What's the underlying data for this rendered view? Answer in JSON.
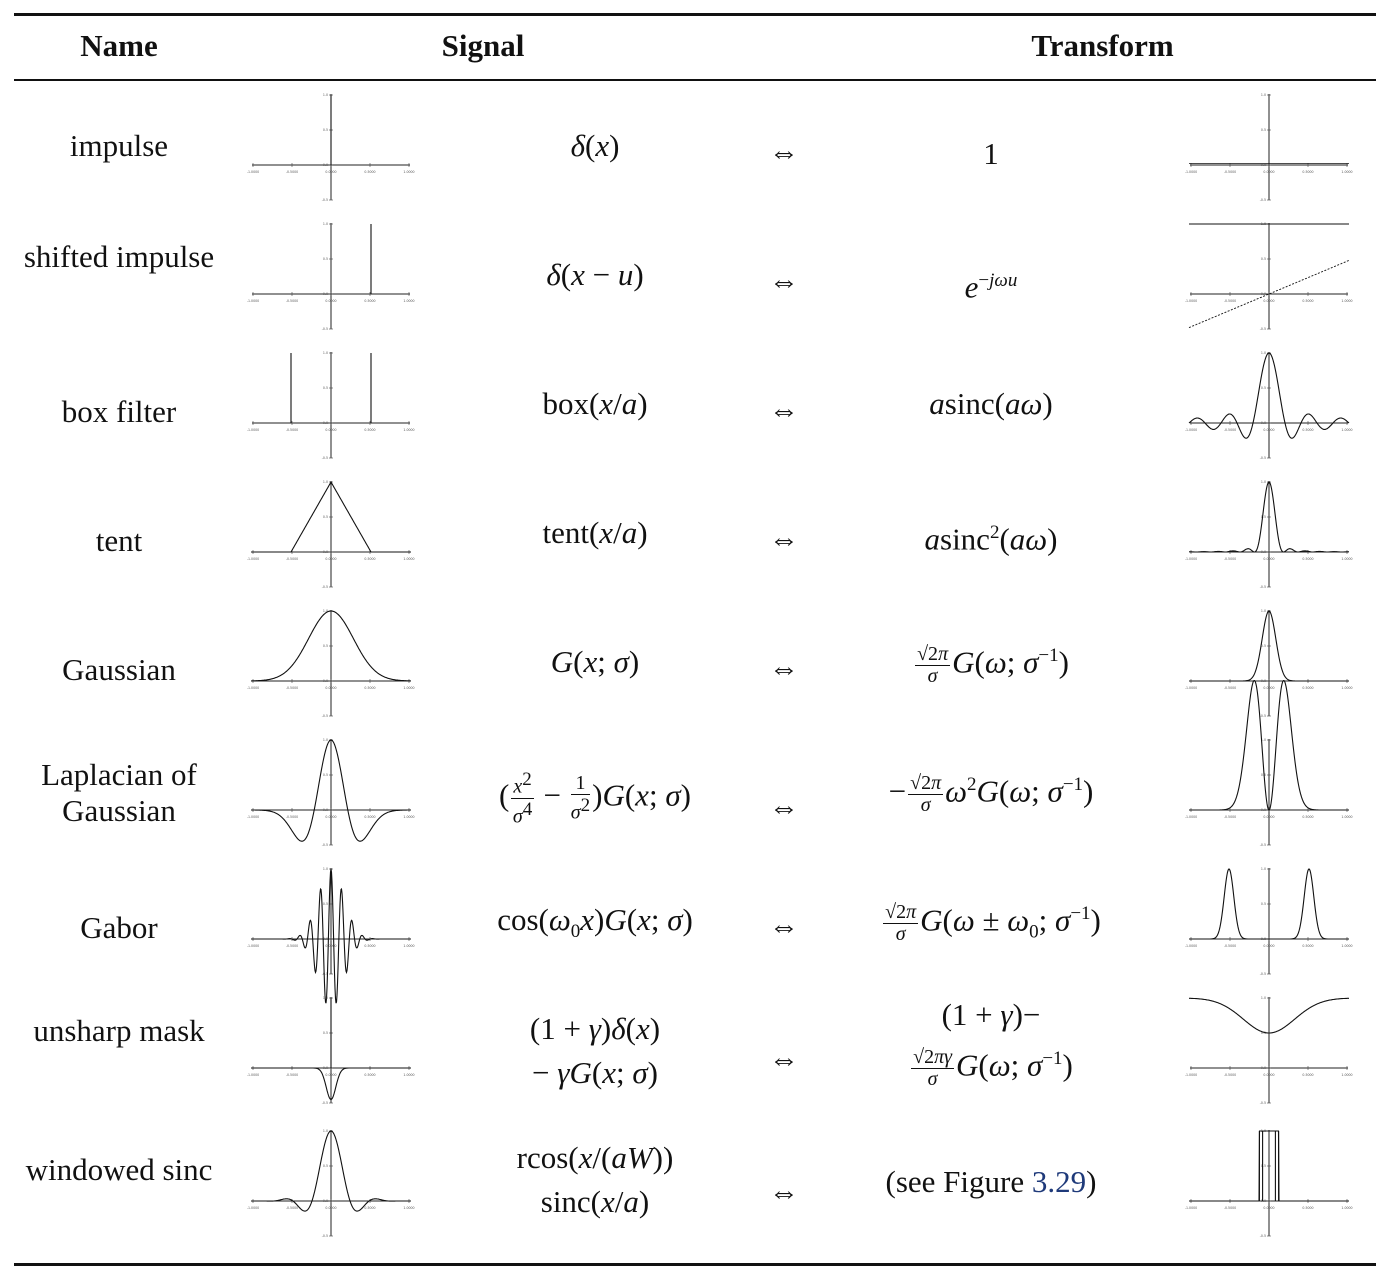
{
  "header": {
    "name": "Name",
    "signal": "Signal",
    "transform": "Transform"
  },
  "rows": [
    {
      "name": "impulse",
      "signal": "δ(x)",
      "transform": "1"
    },
    {
      "name": "shifted impulse",
      "signal": "δ(x − u)",
      "transform": "e^{−jωu}"
    },
    {
      "name": "box filter",
      "signal": "box(x/a)",
      "transform": "asinc(aω)"
    },
    {
      "name": "tent",
      "signal": "tent(x/a)",
      "transform": "asinc²(aω)"
    },
    {
      "name": "Gaussian",
      "signal": "G(x; σ)",
      "transform": "(√2π/σ) G(ω; σ⁻¹)"
    },
    {
      "name": "Laplacian of Gaussian",
      "signal": "(x²/σ⁴ − 1/σ²) G(x; σ)",
      "transform": "−(√2π/σ) ω² G(ω; σ⁻¹)"
    },
    {
      "name": "Gabor",
      "signal": "cos(ω₀x) G(x; σ)",
      "transform": "(√2π/σ) G(ω ± ω₀; σ⁻¹)"
    },
    {
      "name": "unsharp mask",
      "signal": "(1 + γ)δ(x) − γG(x; σ)",
      "transform": "(1 + γ)− (√2πγ/σ) G(ω; σ⁻¹)"
    },
    {
      "name": "windowed sinc",
      "signal": "rcos(x/(aW)) sinc(x/a)",
      "transform": "(see Figure 3.29)"
    }
  ],
  "arrow": "⇔",
  "figure_ref": "3.29",
  "plot_axis": {
    "x_ticks": [
      "-1.0000",
      "-0.5000",
      "0.0000",
      "0.5000",
      "1.0000"
    ],
    "y_ticks": [
      "1.0",
      "0.5",
      "0.0",
      "-0.5"
    ]
  }
}
